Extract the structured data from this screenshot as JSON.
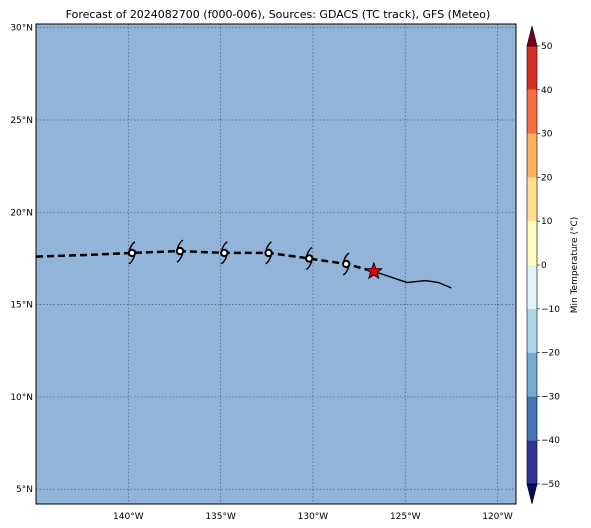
{
  "title": "Forecast of 2024082700 (f000-006), Sources: GDACS (TC track), GFS (Meteo)",
  "map": {
    "ocean_color": "#92b4d8",
    "grid_color": "#4a5a78",
    "lon_range": [
      -145,
      -119
    ],
    "lat_range": [
      4.2,
      30.2
    ],
    "lon_ticks": [
      {
        "value": -140,
        "label": "140°W"
      },
      {
        "value": -135,
        "label": "135°W"
      },
      {
        "value": -130,
        "label": "130°W"
      },
      {
        "value": -125,
        "label": "125°W"
      },
      {
        "value": -120,
        "label": "120°W"
      }
    ],
    "lat_ticks": [
      {
        "value": 5,
        "label": "5°N"
      },
      {
        "value": 10,
        "label": "10°N"
      },
      {
        "value": 15,
        "label": "15°N"
      },
      {
        "value": 20,
        "label": "20°N"
      },
      {
        "value": 25,
        "label": "25°N"
      },
      {
        "value": 30,
        "label": "30°N"
      }
    ]
  },
  "track": {
    "forecast_dashed": [
      [
        -145.0,
        17.6
      ],
      [
        -142.0,
        17.7
      ],
      [
        -139.8,
        17.8
      ],
      [
        -137.2,
        17.9
      ],
      [
        -134.8,
        17.8
      ],
      [
        -132.4,
        17.8
      ],
      [
        -130.2,
        17.5
      ],
      [
        -128.2,
        17.2
      ],
      [
        -126.7,
        16.8
      ]
    ],
    "observed_solid": [
      [
        -126.7,
        16.8
      ],
      [
        -125.8,
        16.5
      ],
      [
        -124.9,
        16.2
      ],
      [
        -123.9,
        16.3
      ],
      [
        -123.2,
        16.2
      ],
      [
        -122.5,
        15.9
      ]
    ],
    "storm_symbols": [
      [
        -139.8,
        17.8
      ],
      [
        -137.2,
        17.9
      ],
      [
        -134.8,
        17.8
      ],
      [
        -132.4,
        17.8
      ],
      [
        -130.2,
        17.5
      ],
      [
        -128.2,
        17.2
      ]
    ],
    "current_position": [
      -126.7,
      16.8
    ],
    "current_marker_color": "#dd0000"
  },
  "colorbar": {
    "label": "Min Temperature (°C)",
    "ticks": [
      -50,
      -40,
      -30,
      -20,
      -10,
      0,
      10,
      20,
      30,
      40,
      50
    ],
    "range": [
      -55,
      55
    ],
    "levels": [
      -50,
      -40,
      -30,
      -20,
      -10,
      0,
      10,
      20,
      30,
      40,
      50
    ],
    "colors": [
      "#313695",
      "#4575b4",
      "#74add1",
      "#abd9e9",
      "#e0f3f8",
      "#ffffbf",
      "#fee090",
      "#fdae61",
      "#f46d43",
      "#d73027",
      "#a50026"
    ],
    "under_color": "#0a0a6a",
    "over_color": "#7a0020"
  }
}
